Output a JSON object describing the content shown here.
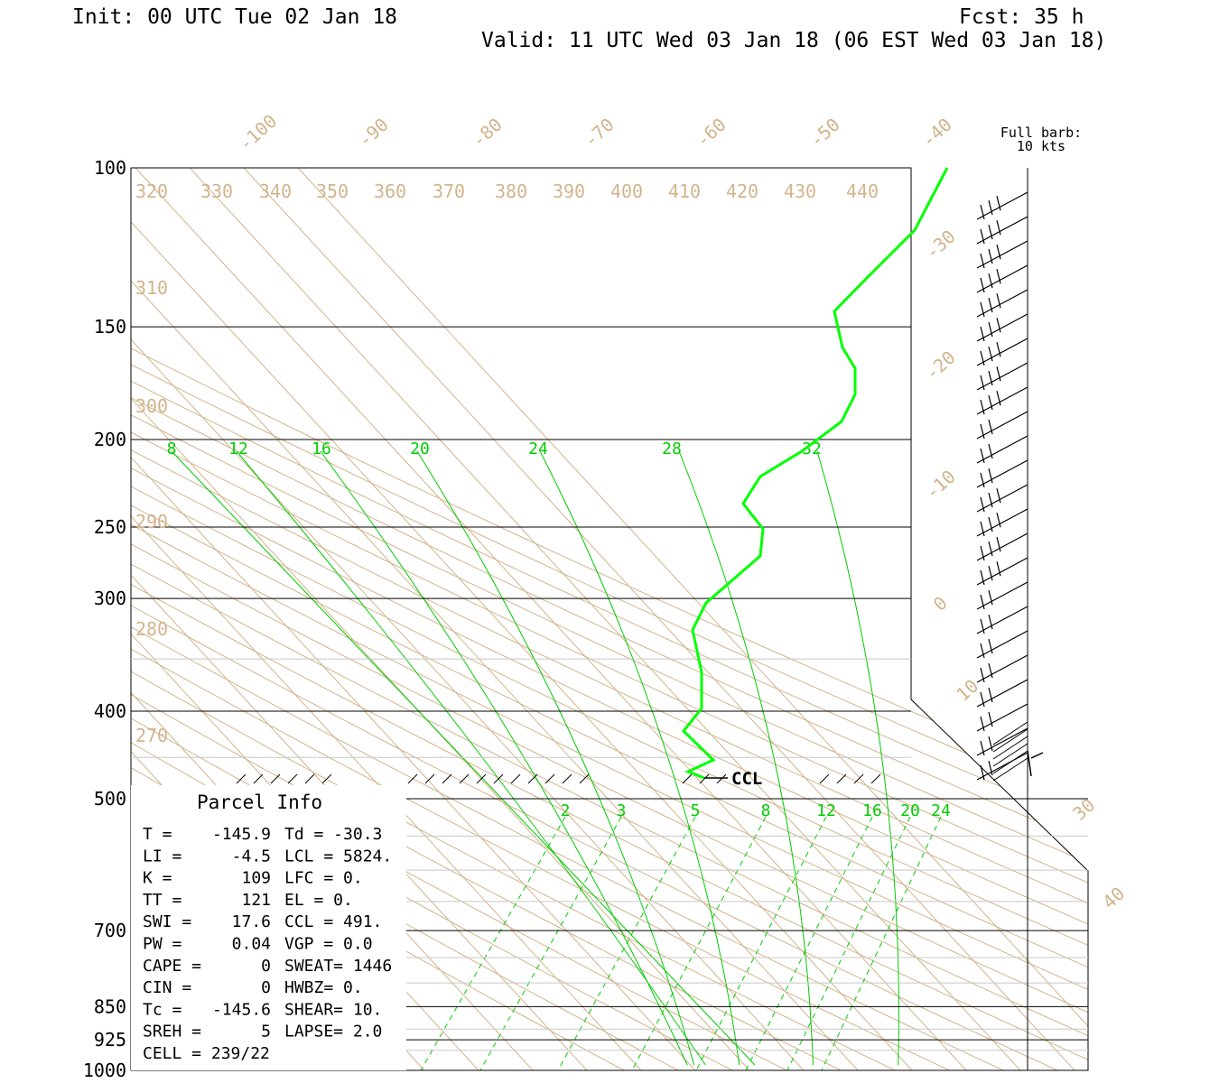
{
  "header": {
    "init": "Init: 00 UTC Tue 02 Jan 18",
    "fcst": "Fcst:   35 h",
    "valid": "Valid: 11 UTC Wed 03 Jan 18 (06 EST Wed 03 Jan 18)"
  },
  "barb_legend": {
    "line1": "Full barb:",
    "line2": "10 kts"
  },
  "colors": {
    "isotherm": "#d2b48c",
    "theta": "#d2b48c",
    "moist": "#00cc00",
    "profile": "#00ff00",
    "frame": "#000000"
  },
  "chart_data": {
    "type": "line",
    "pressure_labels": [
      "100",
      "150",
      "200",
      "250",
      "300",
      "400",
      "500",
      "700",
      "850",
      "925",
      "1000"
    ],
    "skewed_temp_labels": [
      "-100",
      "-90",
      "-80",
      "-70",
      "-60",
      "-50",
      "-40",
      "-30",
      "-20",
      "-10",
      "0",
      "10",
      "30",
      "40"
    ],
    "theta_labels": [
      "320",
      "330",
      "340",
      "350",
      "360",
      "370",
      "380",
      "390",
      "400",
      "410",
      "420",
      "430",
      "440",
      "310",
      "300",
      "290",
      "280",
      "270"
    ],
    "moist_adiabat_labels": [
      "8",
      "12",
      "16",
      "20",
      "24",
      "28",
      "32"
    ],
    "mixing_ratio_labels": [
      "2",
      "3",
      "5",
      "8",
      "12",
      "16",
      "20",
      "24"
    ],
    "ccl_label": "CCL",
    "series": [
      {
        "values": [
          [
            100,
            -38
          ],
          [
            120,
            -35
          ],
          [
            140,
            -36
          ],
          [
            150,
            -36
          ],
          [
            170,
            -27
          ],
          [
            190,
            -22
          ],
          [
            210,
            -23
          ],
          [
            220,
            -24
          ],
          [
            240,
            -23
          ],
          [
            260,
            -21
          ],
          [
            280,
            -21
          ],
          [
            320,
            -22
          ],
          [
            370,
            -22
          ],
          [
            410,
            -23
          ],
          [
            430,
            -21
          ],
          [
            450,
            -19
          ],
          [
            470,
            -22
          ],
          [
            480,
            -24
          ],
          [
            500,
            -25
          ]
        ]
      }
    ],
    "wind_barbs": {
      "count": 24
    }
  },
  "parcel_info": {
    "title": "Parcel Info",
    "rows": [
      {
        "l": "T  =",
        "lv": "-145.9",
        "r": "Td = -30.3"
      },
      {
        "l": "LI =",
        "lv": "-4.5",
        "r": "LCL = 5824."
      },
      {
        "l": "K  =",
        "lv": "109",
        "r": "LFC =    0."
      },
      {
        "l": "TT =",
        "lv": "121",
        "r": "EL  =    0."
      },
      {
        "l": "SWI =",
        "lv": "17.6",
        "r": "CCL =  491."
      },
      {
        "l": "PW =",
        "lv": "0.04",
        "r": "VGP =   0.0"
      },
      {
        "l": "CAPE =",
        "lv": "0",
        "r": "SWEAT= 1446"
      },
      {
        "l": "CIN =",
        "lv": "0",
        "r": "HWBZ=   0."
      },
      {
        "l": "Tc =",
        "lv": "-145.6",
        "r": "SHEAR=  10."
      },
      {
        "l": "SREH =",
        "lv": "5",
        "r": "LAPSE=  2.0"
      },
      {
        "l": "CELL = 239/22",
        "lv": "",
        "r": ""
      }
    ]
  }
}
